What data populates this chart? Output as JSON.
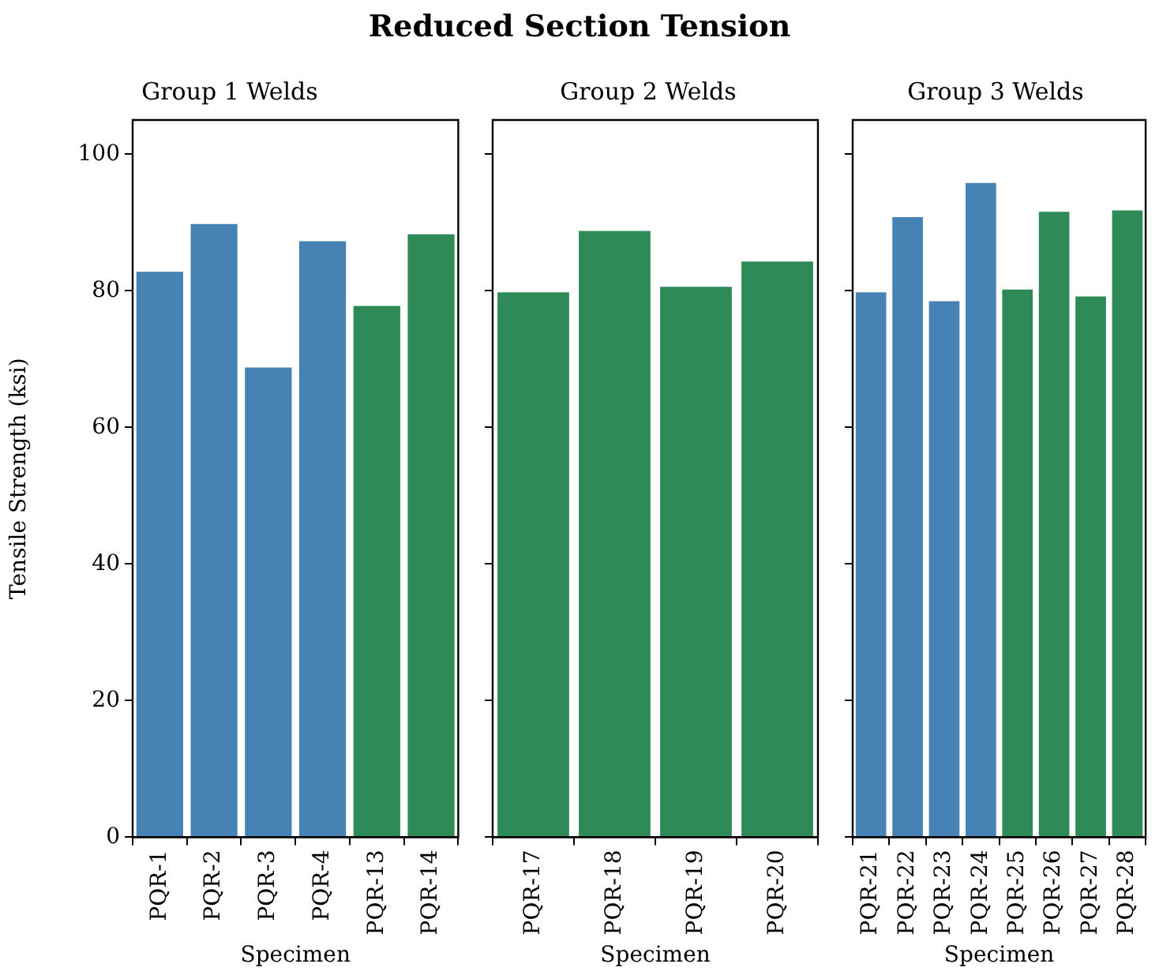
{
  "chart_data": [
    {
      "type": "bar",
      "title": "Reduced Section Tension",
      "subtitle": "Group 1 Welds",
      "xlabel": "Specimen",
      "ylabel": "Tensile Strength (ksi)",
      "categories": [
        "PQR-1",
        "PQR-2",
        "PQR-3",
        "PQR-4",
        "PQR-13",
        "PQR-14"
      ],
      "values": [
        83,
        90,
        69,
        87.5,
        78,
        88.5
      ],
      "colors": [
        "#4682b4",
        "#4682b4",
        "#4682b4",
        "#4682b4",
        "#2e8b57",
        "#2e8b57"
      ],
      "ylim": [
        0,
        105
      ],
      "yticks": [
        0,
        20,
        40,
        60,
        80,
        100
      ],
      "grid": false,
      "legend": false
    },
    {
      "type": "bar",
      "subtitle": "Group 2 Welds",
      "xlabel": "Specimen",
      "categories": [
        "PQR-17",
        "PQR-18",
        "PQR-19",
        "PQR-20"
      ],
      "values": [
        80,
        89,
        80.8,
        84.5
      ],
      "colors": [
        "#2e8b57",
        "#2e8b57",
        "#2e8b57",
        "#2e8b57"
      ],
      "ylim": [
        0,
        105
      ],
      "yticks": [
        0,
        20,
        40,
        60,
        80,
        100
      ],
      "grid": false,
      "legend": false,
      "tick_labels": "x"
    },
    {
      "type": "bar",
      "subtitle": "Group 3 Welds",
      "xlabel": "Specimen",
      "categories": [
        "PQR-21",
        "PQR-22",
        "PQR-23",
        "PQR-24",
        "PQR-25",
        "PQR-26",
        "PQR-27",
        "PQR-28"
      ],
      "values": [
        80,
        91,
        78.7,
        96,
        80.4,
        91.8,
        79.4,
        92
      ],
      "colors": [
        "#4682b4",
        "#4682b4",
        "#4682b4",
        "#4682b4",
        "#2e8b57",
        "#2e8b57",
        "#2e8b57",
        "#2e8b57"
      ],
      "ylim": [
        0,
        105
      ],
      "yticks": [
        0,
        20,
        40,
        60,
        80,
        100
      ],
      "grid": false,
      "legend": false,
      "tick_labels": "x"
    }
  ]
}
